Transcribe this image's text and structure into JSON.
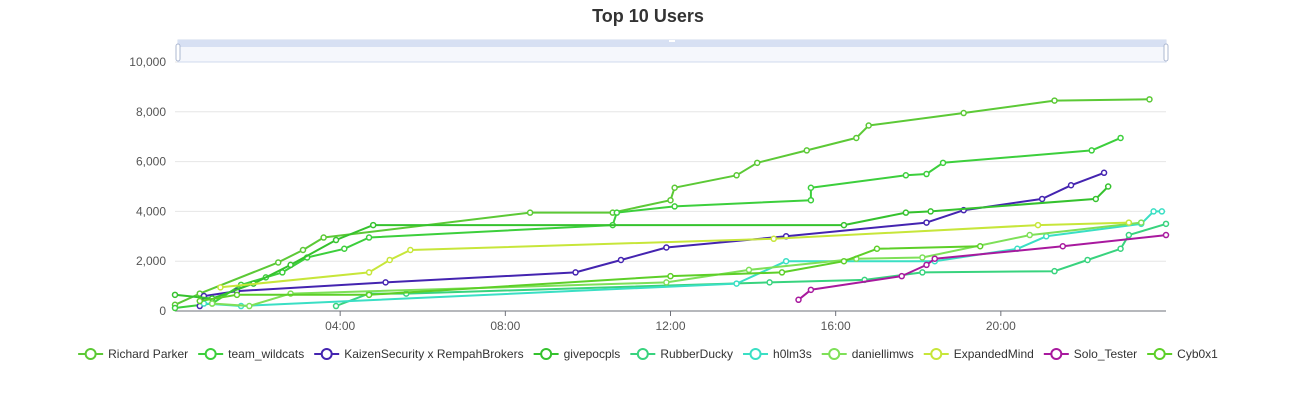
{
  "chart_data": {
    "type": "line",
    "title": "Top 10 Users",
    "xlabel": "",
    "ylabel": "",
    "x_unit": "hours",
    "xlim": [
      0,
      24
    ],
    "ylim": [
      0,
      10000
    ],
    "x_ticks": [
      {
        "value": 4,
        "label": "04:00"
      },
      {
        "value": 8,
        "label": "08:00"
      },
      {
        "value": 12,
        "label": "12:00"
      },
      {
        "value": 16,
        "label": "16:00"
      },
      {
        "value": 20,
        "label": "20:00"
      }
    ],
    "y_ticks": [
      {
        "value": 0,
        "label": "0"
      },
      {
        "value": 2000,
        "label": "2,000"
      },
      {
        "value": 4000,
        "label": "4,000"
      },
      {
        "value": 6000,
        "label": "6,000"
      },
      {
        "value": 8000,
        "label": "8,000"
      },
      {
        "value": 10000,
        "label": "10,000"
      }
    ],
    "grid": "horizontal",
    "legend_position": "bottom",
    "data_zoom_slider": true,
    "series": [
      {
        "name": "Richard Parker",
        "color": "#5cc936",
        "points": [
          [
            0,
            250
          ],
          [
            0.6,
            700
          ],
          [
            2.5,
            1950
          ],
          [
            3.1,
            2450
          ],
          [
            3.6,
            2950
          ],
          [
            8.6,
            3950
          ],
          [
            10.6,
            3950
          ],
          [
            12.0,
            4450
          ],
          [
            12.1,
            4950
          ],
          [
            13.6,
            5450
          ],
          [
            14.1,
            5950
          ],
          [
            15.3,
            6450
          ],
          [
            16.5,
            6950
          ],
          [
            16.8,
            7450
          ],
          [
            19.1,
            7950
          ],
          [
            21.3,
            8450
          ],
          [
            23.6,
            8500
          ]
        ]
      },
      {
        "name": "team_wildcats",
        "color": "#3ccf3c",
        "points": [
          [
            0,
            120
          ],
          [
            0.9,
            300
          ],
          [
            1.6,
            1050
          ],
          [
            2.2,
            1350
          ],
          [
            2.6,
            1550
          ],
          [
            3.2,
            2150
          ],
          [
            4.1,
            2500
          ],
          [
            4.7,
            2950
          ],
          [
            10.6,
            3450
          ],
          [
            10.7,
            3950
          ],
          [
            12.1,
            4200
          ],
          [
            15.4,
            4450
          ],
          [
            15.4,
            4950
          ],
          [
            17.7,
            5450
          ],
          [
            18.2,
            5500
          ],
          [
            18.6,
            5950
          ],
          [
            22.2,
            6450
          ],
          [
            22.9,
            6950
          ]
        ]
      },
      {
        "name": "KaizenSecurity x RempahBrokers",
        "color": "#4424b0",
        "points": [
          [
            0.6,
            200
          ],
          [
            0.7,
            600
          ],
          [
            1.5,
            800
          ],
          [
            5.1,
            1150
          ],
          [
            9.7,
            1550
          ],
          [
            10.8,
            2050
          ],
          [
            11.9,
            2550
          ],
          [
            14.8,
            3000
          ],
          [
            18.2,
            3550
          ],
          [
            19.1,
            4050
          ],
          [
            21.0,
            4500
          ],
          [
            21.7,
            5050
          ],
          [
            22.5,
            5550
          ]
        ]
      },
      {
        "name": "givepocpls",
        "color": "#35c22e",
        "points": [
          [
            0,
            650
          ],
          [
            0.9,
            500
          ],
          [
            1.9,
            1100
          ],
          [
            2.8,
            1850
          ],
          [
            3.9,
            2850
          ],
          [
            4.8,
            3450
          ],
          [
            16.2,
            3450
          ],
          [
            17.7,
            3950
          ],
          [
            18.3,
            4000
          ],
          [
            22.3,
            4500
          ],
          [
            22.6,
            5000
          ]
        ]
      },
      {
        "name": "RubberDucky",
        "color": "#38d37e",
        "points": [
          [
            3.9,
            200
          ],
          [
            4.7,
            700
          ],
          [
            5.6,
            700
          ],
          [
            14.4,
            1150
          ],
          [
            16.7,
            1250
          ],
          [
            18.1,
            1550
          ],
          [
            21.3,
            1600
          ],
          [
            22.1,
            2050
          ],
          [
            22.9,
            2500
          ],
          [
            23.1,
            3050
          ],
          [
            24.0,
            3500
          ]
        ]
      },
      {
        "name": "h0lm3s",
        "color": "#3adfc4",
        "points": [
          [
            0.7,
            300
          ],
          [
            1.6,
            200
          ],
          [
            13.6,
            1100
          ],
          [
            14.8,
            2000
          ],
          [
            18.4,
            2000
          ],
          [
            20.4,
            2500
          ],
          [
            21.1,
            3000
          ],
          [
            23.4,
            3500
          ],
          [
            23.7,
            4000
          ],
          [
            23.9,
            4000
          ]
        ]
      },
      {
        "name": "daniellimws",
        "color": "#7ee058",
        "points": [
          [
            0.9,
            300
          ],
          [
            1.8,
            200
          ],
          [
            2.8,
            700
          ],
          [
            11.9,
            1150
          ],
          [
            13.9,
            1650
          ],
          [
            16.5,
            2100
          ],
          [
            18.1,
            2150
          ],
          [
            20.7,
            3050
          ],
          [
            23.4,
            3550
          ]
        ]
      },
      {
        "name": "ExpandedMind",
        "color": "#c7e63a",
        "points": [
          [
            1.1,
            950
          ],
          [
            4.7,
            1550
          ],
          [
            5.2,
            2050
          ],
          [
            5.7,
            2450
          ],
          [
            14.5,
            2900
          ],
          [
            20.9,
            3450
          ],
          [
            23.1,
            3550
          ]
        ]
      },
      {
        "name": "Solo_Tester",
        "color": "#a8199e",
        "points": [
          [
            15.1,
            450
          ],
          [
            15.4,
            850
          ],
          [
            17.6,
            1400
          ],
          [
            18.2,
            1850
          ],
          [
            18.4,
            2100
          ],
          [
            21.5,
            2600
          ],
          [
            24.0,
            3050
          ]
        ]
      },
      {
        "name": "Cyb0x1",
        "color": "#5dcf28",
        "points": [
          [
            0.6,
            400
          ],
          [
            1.5,
            650
          ],
          [
            4.7,
            650
          ],
          [
            12.0,
            1400
          ],
          [
            14.7,
            1550
          ],
          [
            16.2,
            2000
          ],
          [
            17.0,
            2500
          ],
          [
            19.5,
            2600
          ]
        ]
      }
    ]
  }
}
